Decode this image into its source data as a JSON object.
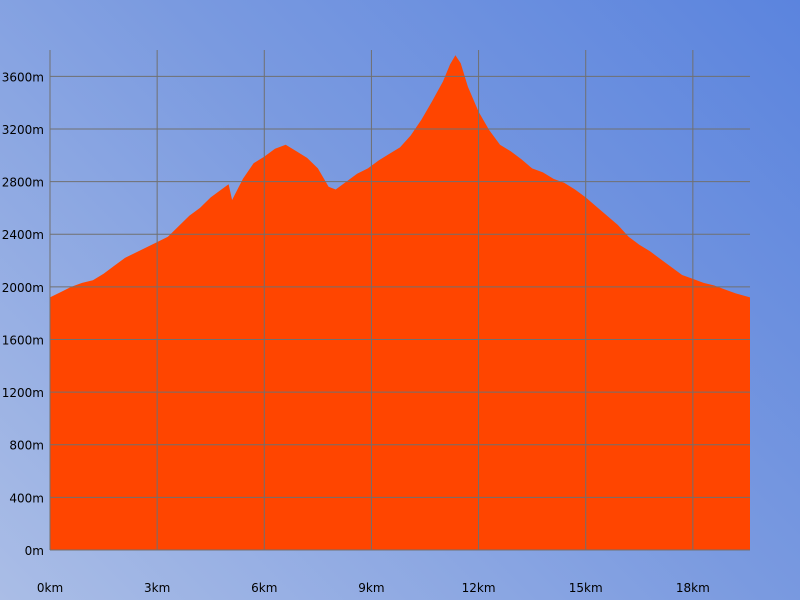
{
  "chart_data": {
    "type": "area",
    "title": "",
    "xlabel": "",
    "ylabel": "",
    "grid": true,
    "xlim": [
      0,
      19.6
    ],
    "ylim": [
      0,
      3800
    ],
    "x_ticks": [
      0,
      3,
      6,
      9,
      12,
      15,
      18
    ],
    "x_tick_labels": [
      "0km",
      "3km",
      "6km",
      "9km",
      "12km",
      "15km",
      "18km"
    ],
    "y_ticks": [
      0,
      400,
      800,
      1200,
      1600,
      2000,
      2400,
      2800,
      3200,
      3600
    ],
    "y_tick_labels": [
      "0m",
      "400m",
      "800m",
      "1200m",
      "1600m",
      "2000m",
      "2400m",
      "2800m",
      "3200m",
      "3600m"
    ],
    "colors": {
      "area": "#ff4500",
      "grid": "#707070"
    },
    "series": [
      {
        "x": [
          0,
          0.3,
          0.6,
          0.9,
          1.2,
          1.5,
          1.8,
          2.1,
          2.4,
          2.7,
          3.0,
          3.3,
          3.6,
          3.9,
          4.2,
          4.5,
          4.8,
          5.0,
          5.1,
          5.4,
          5.7,
          6.0,
          6.3,
          6.6,
          6.9,
          7.2,
          7.5,
          7.8,
          8.0,
          8.3,
          8.6,
          8.9,
          9.2,
          9.5,
          9.8,
          10.1,
          10.4,
          10.7,
          11.0,
          11.2,
          11.35,
          11.5,
          11.7,
          12.0,
          12.3,
          12.6,
          12.9,
          13.2,
          13.5,
          13.8,
          14.1,
          14.4,
          14.7,
          15.0,
          15.3,
          15.6,
          15.9,
          16.2,
          16.5,
          16.8,
          17.1,
          17.4,
          17.7,
          18.0,
          18.3,
          18.6,
          18.9,
          19.2,
          19.6
        ],
        "y": [
          1920,
          1960,
          2000,
          2030,
          2050,
          2100,
          2160,
          2220,
          2260,
          2300,
          2340,
          2380,
          2460,
          2540,
          2600,
          2680,
          2740,
          2780,
          2660,
          2820,
          2940,
          2990,
          3050,
          3080,
          3030,
          2980,
          2900,
          2760,
          2740,
          2800,
          2860,
          2900,
          2960,
          3010,
          3060,
          3150,
          3270,
          3410,
          3560,
          3690,
          3760,
          3700,
          3520,
          3330,
          3190,
          3080,
          3030,
          2970,
          2900,
          2870,
          2820,
          2790,
          2740,
          2680,
          2610,
          2540,
          2470,
          2380,
          2320,
          2270,
          2210,
          2150,
          2090,
          2060,
          2030,
          2010,
          1980,
          1950,
          1920
        ]
      }
    ]
  }
}
